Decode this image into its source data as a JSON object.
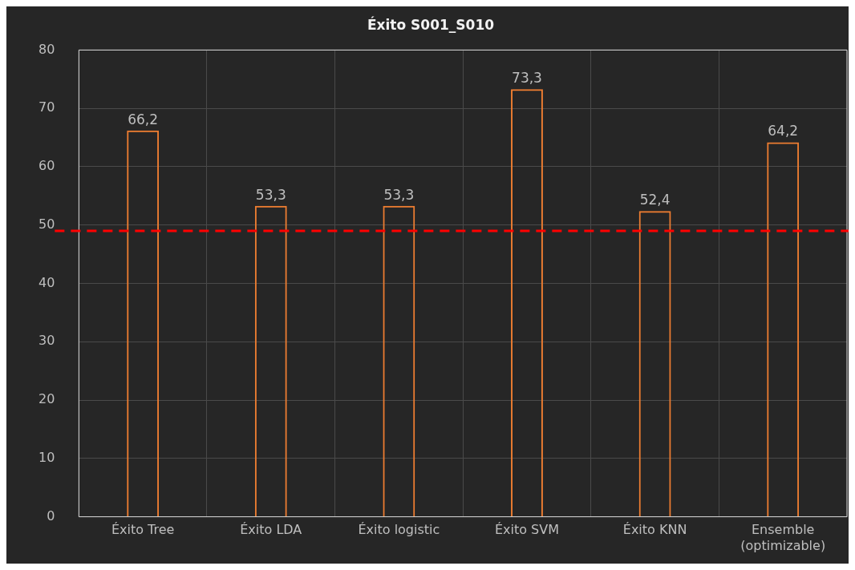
{
  "chart_data": {
    "type": "bar",
    "title": "Éxito S001_S010",
    "categories": [
      "Éxito Tree",
      "Éxito LDA",
      "Éxito logistic",
      "Éxito SVM",
      "Éxito KNN",
      "Ensemble (optimizable)"
    ],
    "values": [
      66.2,
      53.3,
      53.3,
      73.3,
      52.4,
      64.2
    ],
    "value_labels": [
      "66,2",
      "53,3",
      "53,3",
      "73,3",
      "52,4",
      "64,2"
    ],
    "color": "#ed7d31",
    "ylim": [
      0,
      80
    ],
    "yticks": [
      0,
      10,
      20,
      30,
      40,
      50,
      60,
      70,
      80
    ],
    "grid": true,
    "ref_lines": [
      {
        "axis": "y",
        "value": 49,
        "color": "#ff0000",
        "line_style": "dashed"
      }
    ]
  }
}
